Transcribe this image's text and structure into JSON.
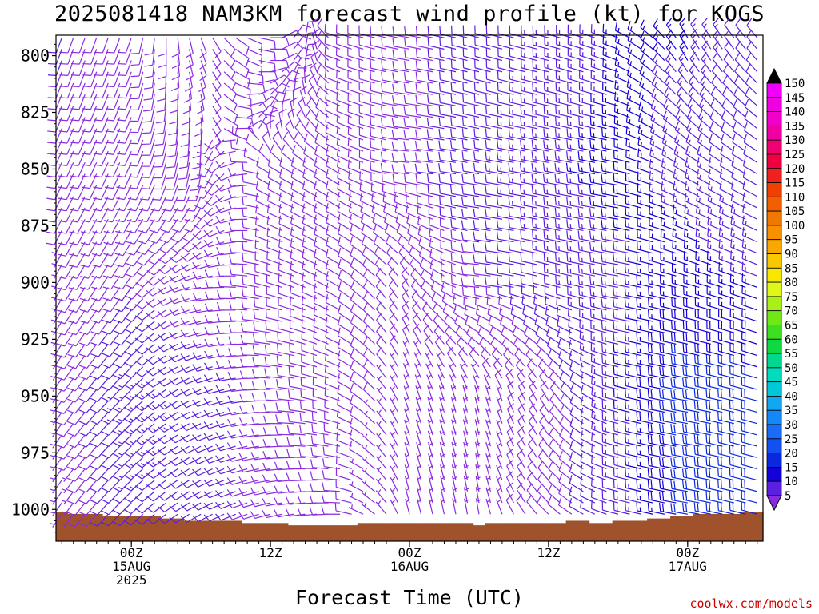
{
  "title": "2025081418 NAM3KM forecast wind profile (kt) for KOGS",
  "credit": "coolwx.com/models",
  "chart_data": {
    "type": "wind_barb_profile",
    "title": "2025081418 NAM3KM forecast wind profile (kt) for KOGS",
    "xlabel": "Forecast Time (UTC)",
    "ylabel": "",
    "y_axis": {
      "reversed": true,
      "ylim": [
        791,
        1014
      ],
      "ticks": [
        800,
        825,
        850,
        875,
        900,
        925,
        950,
        975,
        1000
      ]
    },
    "x_axis": {
      "hours_per_column": 1,
      "ticks": [
        {
          "hour": 6,
          "label": "00Z",
          "sub1": "15AUG",
          "sub2": "2025"
        },
        {
          "hour": 18,
          "label": "12Z",
          "sub1": "",
          "sub2": ""
        },
        {
          "hour": 30,
          "label": "00Z",
          "sub1": "16AUG",
          "sub2": ""
        },
        {
          "hour": 42,
          "label": "12Z",
          "sub1": "",
          "sub2": ""
        },
        {
          "hour": 54,
          "label": "00Z",
          "sub1": "17AUG",
          "sub2": ""
        }
      ]
    },
    "colorbar": {
      "levels": [
        5,
        10,
        15,
        20,
        25,
        30,
        35,
        40,
        45,
        50,
        55,
        60,
        65,
        70,
        75,
        80,
        85,
        90,
        95,
        100,
        105,
        110,
        115,
        120,
        125,
        130,
        135,
        140,
        145,
        150
      ],
      "colors": [
        "#8a2be2",
        "#5b1fe0",
        "#1400d8",
        "#0a28e0",
        "#1450f0",
        "#1a6cf8",
        "#1488f8",
        "#10a8f0",
        "#00c8d8",
        "#00dcbc",
        "#00d890",
        "#10d840",
        "#3ce020",
        "#70e818",
        "#a8f018",
        "#e0f818",
        "#f8e800",
        "#f8c800",
        "#f8a800",
        "#f89000",
        "#f07800",
        "#f06000",
        "#f04000",
        "#f02020",
        "#f00040",
        "#f00070",
        "#f000a0",
        "#f000c8",
        "#f000e0",
        "#f000f8"
      ]
    },
    "terrain": {
      "color": "#a0522d",
      "surface_pressure": [
        1001,
        1002,
        1002,
        1002,
        1003,
        1003,
        1003,
        1003,
        1003,
        1004,
        1004,
        1005,
        1005,
        1005,
        1005,
        1005,
        1006,
        1006,
        1006,
        1006,
        1007,
        1007,
        1007,
        1007,
        1007,
        1007,
        1006,
        1006,
        1006,
        1006,
        1006,
        1006,
        1006,
        1006,
        1006,
        1006,
        1007,
        1006,
        1006,
        1006,
        1006,
        1006,
        1006,
        1006,
        1005,
        1005,
        1006,
        1006,
        1005,
        1005,
        1005,
        1004,
        1004,
        1003,
        1003,
        1002,
        1002,
        1002,
        1002,
        1001,
        1001
      ]
    },
    "series": {
      "pressure_levels": [
        790,
        795,
        800,
        805,
        810,
        815,
        820,
        825,
        830,
        835,
        840,
        845,
        850,
        855,
        860,
        865,
        870,
        875,
        880,
        885,
        890,
        895,
        900,
        905,
        910,
        915,
        920,
        925,
        930,
        935,
        940,
        945,
        950,
        955,
        960,
        965,
        970,
        975,
        980,
        985,
        990,
        995,
        1000
      ],
      "keyframes": [
        {
          "hour": 0,
          "levels": [
            {
              "p": 800,
              "dir": 200,
              "spd": 10
            },
            {
              "p": 850,
              "dir": 205,
              "spd": 8
            },
            {
              "p": 900,
              "dir": 210,
              "spd": 7
            },
            {
              "p": 950,
              "dir": 215,
              "spd": 7
            },
            {
              "p": 1000,
              "dir": 215,
              "spd": 6
            }
          ]
        },
        {
          "hour": 6,
          "levels": [
            {
              "p": 800,
              "dir": 200,
              "spd": 9
            },
            {
              "p": 850,
              "dir": 205,
              "spd": 9
            },
            {
              "p": 900,
              "dir": 215,
              "spd": 10
            },
            {
              "p": 950,
              "dir": 225,
              "spd": 14
            },
            {
              "p": 1000,
              "dir": 225,
              "spd": 12
            }
          ]
        },
        {
          "hour": 12,
          "levels": [
            {
              "p": 800,
              "dir": 160,
              "spd": 8
            },
            {
              "p": 850,
              "dir": 190,
              "spd": 8
            },
            {
              "p": 900,
              "dir": 260,
              "spd": 8
            },
            {
              "p": 950,
              "dir": 245,
              "spd": 12
            },
            {
              "p": 1000,
              "dir": 240,
              "spd": 12
            }
          ]
        },
        {
          "hour": 18,
          "levels": [
            {
              "p": 800,
              "dir": 90,
              "spd": 8
            },
            {
              "p": 850,
              "dir": 300,
              "spd": 8
            },
            {
              "p": 900,
              "dir": 285,
              "spd": 8
            },
            {
              "p": 950,
              "dir": 270,
              "spd": 9
            },
            {
              "p": 1000,
              "dir": 255,
              "spd": 8
            }
          ]
        },
        {
          "hour": 24,
          "levels": [
            {
              "p": 800,
              "dir": 290,
              "spd": 8
            },
            {
              "p": 850,
              "dir": 300,
              "spd": 9
            },
            {
              "p": 900,
              "dir": 300,
              "spd": 8
            },
            {
              "p": 950,
              "dir": 290,
              "spd": 8
            },
            {
              "p": 1000,
              "dir": 270,
              "spd": 8
            }
          ]
        },
        {
          "hour": 30,
          "levels": [
            {
              "p": 800,
              "dir": 280,
              "spd": 9
            },
            {
              "p": 850,
              "dir": 275,
              "spd": 9
            },
            {
              "p": 900,
              "dir": 330,
              "spd": 8
            },
            {
              "p": 950,
              "dir": 340,
              "spd": 7
            },
            {
              "p": 1000,
              "dir": 345,
              "spd": 6
            }
          ]
        },
        {
          "hour": 36,
          "levels": [
            {
              "p": 800,
              "dir": 285,
              "spd": 11
            },
            {
              "p": 850,
              "dir": 280,
              "spd": 12
            },
            {
              "p": 900,
              "dir": 275,
              "spd": 9
            },
            {
              "p": 950,
              "dir": 345,
              "spd": 7
            },
            {
              "p": 1000,
              "dir": 350,
              "spd": 7
            }
          ]
        },
        {
          "hour": 42,
          "levels": [
            {
              "p": 800,
              "dir": 285,
              "spd": 13
            },
            {
              "p": 850,
              "dir": 280,
              "spd": 14
            },
            {
              "p": 900,
              "dir": 285,
              "spd": 12
            },
            {
              "p": 950,
              "dir": 330,
              "spd": 8
            },
            {
              "p": 1000,
              "dir": 315,
              "spd": 8
            }
          ]
        },
        {
          "hour": 48,
          "levels": [
            {
              "p": 800,
              "dir": 290,
              "spd": 15
            },
            {
              "p": 850,
              "dir": 280,
              "spd": 16
            },
            {
              "p": 900,
              "dir": 280,
              "spd": 14
            },
            {
              "p": 950,
              "dir": 285,
              "spd": 14
            },
            {
              "p": 1000,
              "dir": 285,
              "spd": 12
            }
          ]
        },
        {
          "hour": 54,
          "levels": [
            {
              "p": 800,
              "dir": 330,
              "spd": 15
            },
            {
              "p": 850,
              "dir": 300,
              "spd": 14
            },
            {
              "p": 900,
              "dir": 285,
              "spd": 17
            },
            {
              "p": 950,
              "dir": 280,
              "spd": 22
            },
            {
              "p": 1000,
              "dir": 280,
              "spd": 20
            }
          ]
        },
        {
          "hour": 60,
          "levels": [
            {
              "p": 800,
              "dir": 320,
              "spd": 10
            },
            {
              "p": 850,
              "dir": 300,
              "spd": 10
            },
            {
              "p": 900,
              "dir": 290,
              "spd": 15
            },
            {
              "p": 950,
              "dir": 285,
              "spd": 22
            },
            {
              "p": 1000,
              "dir": 285,
              "spd": 20
            }
          ]
        }
      ]
    }
  }
}
